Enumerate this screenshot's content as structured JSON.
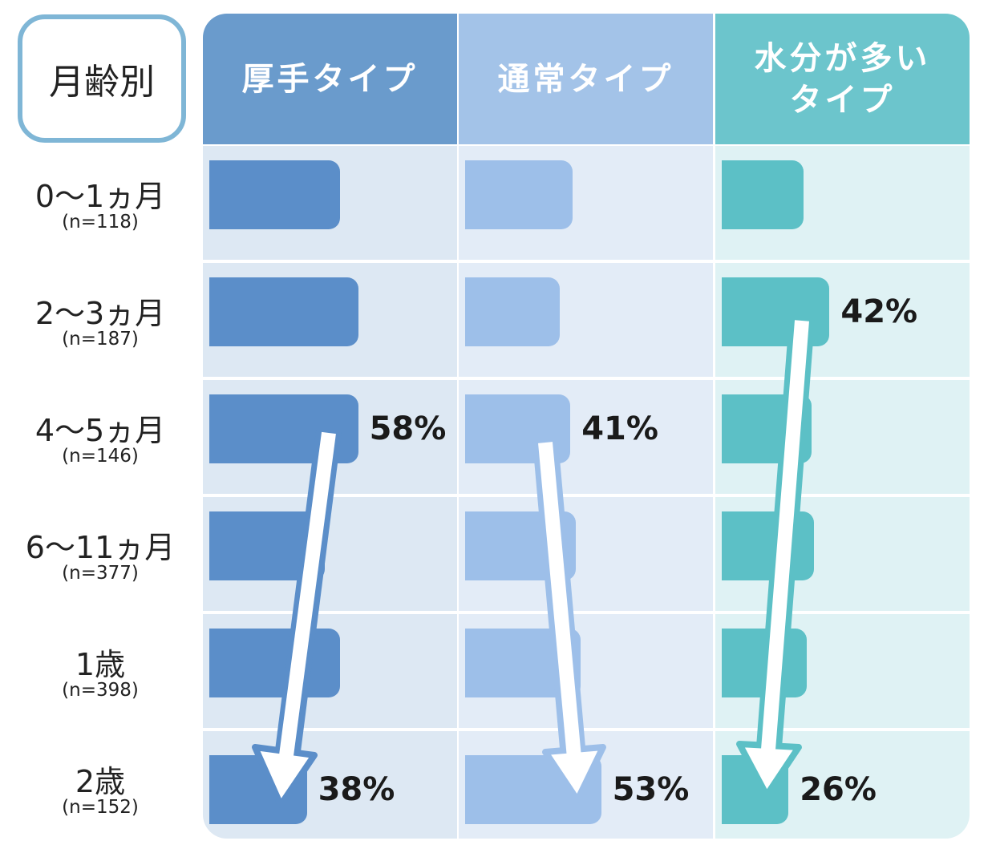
{
  "chart_data": {
    "type": "bar",
    "corner_label": "月齢別",
    "categories": [
      "0～1ヵ月",
      "2～3ヵ月",
      "4～5ヵ月",
      "6～11ヵ月",
      "1歳",
      "2歳"
    ],
    "sample_sizes": [
      "(n=118)",
      "(n=187)",
      "(n=146)",
      "(n=377)",
      "(n=398)",
      "(n=152)"
    ],
    "series": [
      {
        "name": "厚手タイプ",
        "color": "#5b8ec9",
        "header_color": "#6a9bcc",
        "background": "#dde8f3",
        "values": [
          51,
          58,
          58,
          45,
          51,
          38
        ],
        "value_labels": [
          null,
          null,
          "58%",
          null,
          null,
          "38%"
        ]
      },
      {
        "name": "通常タイプ",
        "color": "#9dbfe9",
        "header_color": "#a3c3e8",
        "background": "#e3ecf7",
        "values": [
          42,
          37,
          41,
          43,
          45,
          53
        ],
        "value_labels": [
          null,
          null,
          "41%",
          null,
          null,
          "53%"
        ]
      },
      {
        "name": "水分が多いタイプ",
        "color": "#5cc0c6",
        "header_color": "#6cc5cc",
        "background": "#dff2f4",
        "values": [
          32,
          42,
          35,
          36,
          33,
          26
        ],
        "value_labels": [
          null,
          "42%",
          null,
          null,
          null,
          "26%"
        ]
      }
    ]
  }
}
